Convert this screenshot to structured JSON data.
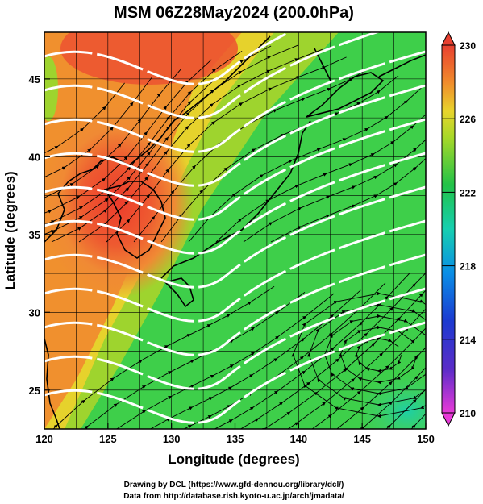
{
  "chart_data": {
    "type": "heatmap",
    "title": "MSM 06Z28May2024 (200.0hPa)",
    "xlabel": "Longitude (degrees)",
    "ylabel": "Latitude  (degrees)",
    "xlim": [
      120,
      150
    ],
    "ylim": [
      22.5,
      48
    ],
    "xticks": [
      "120",
      "125",
      "130",
      "135",
      "140",
      "145",
      "150"
    ],
    "yticks": [
      "25",
      "30",
      "35",
      "40",
      "45"
    ],
    "xtick_values": [
      120,
      125,
      130,
      135,
      140,
      145,
      150
    ],
    "ytick_values": [
      25,
      30,
      35,
      40,
      45
    ],
    "colorbar": {
      "min": 210,
      "max": 230,
      "ticks": [
        "210",
        "214",
        "218",
        "222",
        "226",
        "230"
      ],
      "tick_values": [
        210,
        214,
        218,
        222,
        226,
        230
      ]
    },
    "field": "temperature (K) with wind streamlines and white height contours",
    "warm_core": {
      "lon": 126,
      "lat": 37,
      "value": 229
    },
    "cool_region": {
      "lon": 149,
      "lat": 24,
      "value": 219
    },
    "credits": [
      "Drawing by DCL (https://www.gfd-dennou.org/library/dcl/)",
      "Data from http://database.rish.kyoto-u.ac.jp/arch/jmadata/"
    ]
  }
}
